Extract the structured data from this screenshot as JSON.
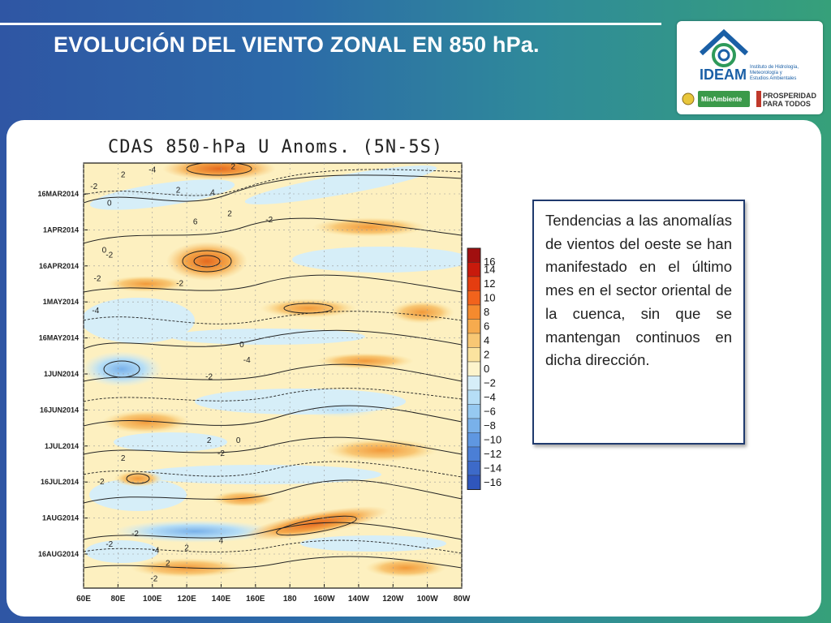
{
  "slide": {
    "title": "EVOLUCIÓN DEL VIENTO ZONAL EN 850 hPa."
  },
  "logo": {
    "name": "IDEAM",
    "subtitle": [
      "Instituto de Hidrología,",
      "Meteorología y",
      "Estudios Ambientales"
    ],
    "ministry": "MinAmbiente",
    "slogan_line1": "PROSPERIDAD",
    "slogan_line2": "PARA TODOS"
  },
  "note": {
    "text": "Tendencias a las anomalías de vientos del oeste se han manifestado en el último mes en el sector oriental de la cuenca, sin que se mantengan continuos en dicha dirección."
  },
  "colors": {
    "accent_blue": "#2f56a4",
    "accent_green": "#36a07a",
    "ideam_blue": "#1a5fa6",
    "ideam_green": "#2e9a5a"
  },
  "chart_data": {
    "type": "heatmap",
    "title": "CDAS 850-hPa U Anoms. (5N-5S)",
    "x_tick_labels": [
      "60E",
      "80E",
      "100E",
      "120E",
      "140E",
      "160E",
      "180",
      "160W",
      "140W",
      "120W",
      "100W",
      "80W"
    ],
    "y_tick_labels": [
      "16MAR2014",
      "1APR2014",
      "16APR2014",
      "1MAY2014",
      "16MAY2014",
      "1JUN2014",
      "16JUN2014",
      "1JUL2014",
      "16JUL2014",
      "1AUG2014",
      "16AUG2014"
    ],
    "colorbar": {
      "levels": [
        16,
        14,
        12,
        10,
        8,
        6,
        4,
        2,
        0,
        -2,
        -4,
        -6,
        -8,
        -10,
        -12,
        -14,
        -16
      ],
      "colors": [
        "#a10f0f",
        "#c81a0c",
        "#e43d10",
        "#f2631c",
        "#f58a2e",
        "#f6ab4e",
        "#f8c774",
        "#fbe39f",
        "#fdf4cc",
        "#d6eef8",
        "#b6def6",
        "#96c9f1",
        "#79b1ea",
        "#5f97e1",
        "#4b7fd6",
        "#3d6ac9",
        "#2f56bc"
      ]
    },
    "contour_labels": [
      {
        "text": "-4",
        "x": 100,
        "y": 8
      },
      {
        "text": "2",
        "x": 147,
        "y": 5
      },
      {
        "text": "2",
        "x": 83,
        "y": 12
      },
      {
        "text": "-2",
        "x": 66,
        "y": 22
      },
      {
        "text": "2",
        "x": 115,
        "y": 25
      },
      {
        "text": "4",
        "x": 135,
        "y": 27
      },
      {
        "text": "0",
        "x": 75,
        "y": 36
      },
      {
        "text": "2",
        "x": 145,
        "y": 45
      },
      {
        "text": "-2",
        "x": 168,
        "y": 50
      },
      {
        "text": "6",
        "x": 125,
        "y": 52
      },
      {
        "text": "0",
        "x": 72,
        "y": 76
      },
      {
        "text": "-2",
        "x": 75,
        "y": 80
      },
      {
        "text": "-2",
        "x": 68,
        "y": 100
      },
      {
        "text": "-2",
        "x": 116,
        "y": 104
      },
      {
        "text": "-4",
        "x": 67,
        "y": 127
      },
      {
        "text": "0",
        "x": 152,
        "y": 156
      },
      {
        "text": "-4",
        "x": 155,
        "y": 169
      },
      {
        "text": "-2",
        "x": 133,
        "y": 183
      },
      {
        "text": "2",
        "x": 133,
        "y": 237
      },
      {
        "text": "0",
        "x": 150,
        "y": 237
      },
      {
        "text": "-2",
        "x": 140,
        "y": 248
      },
      {
        "text": "2",
        "x": 83,
        "y": 252
      },
      {
        "text": "-2",
        "x": 70,
        "y": 272
      },
      {
        "text": "-2",
        "x": 90,
        "y": 316
      },
      {
        "text": "-4",
        "x": 102,
        "y": 330
      },
      {
        "text": "-2",
        "x": 75,
        "y": 325
      },
      {
        "text": "2",
        "x": 120,
        "y": 328
      },
      {
        "text": "4",
        "x": 140,
        "y": 322
      },
      {
        "text": "-2",
        "x": 101,
        "y": 354
      },
      {
        "text": "2",
        "x": 109,
        "y": 341
      }
    ]
  }
}
